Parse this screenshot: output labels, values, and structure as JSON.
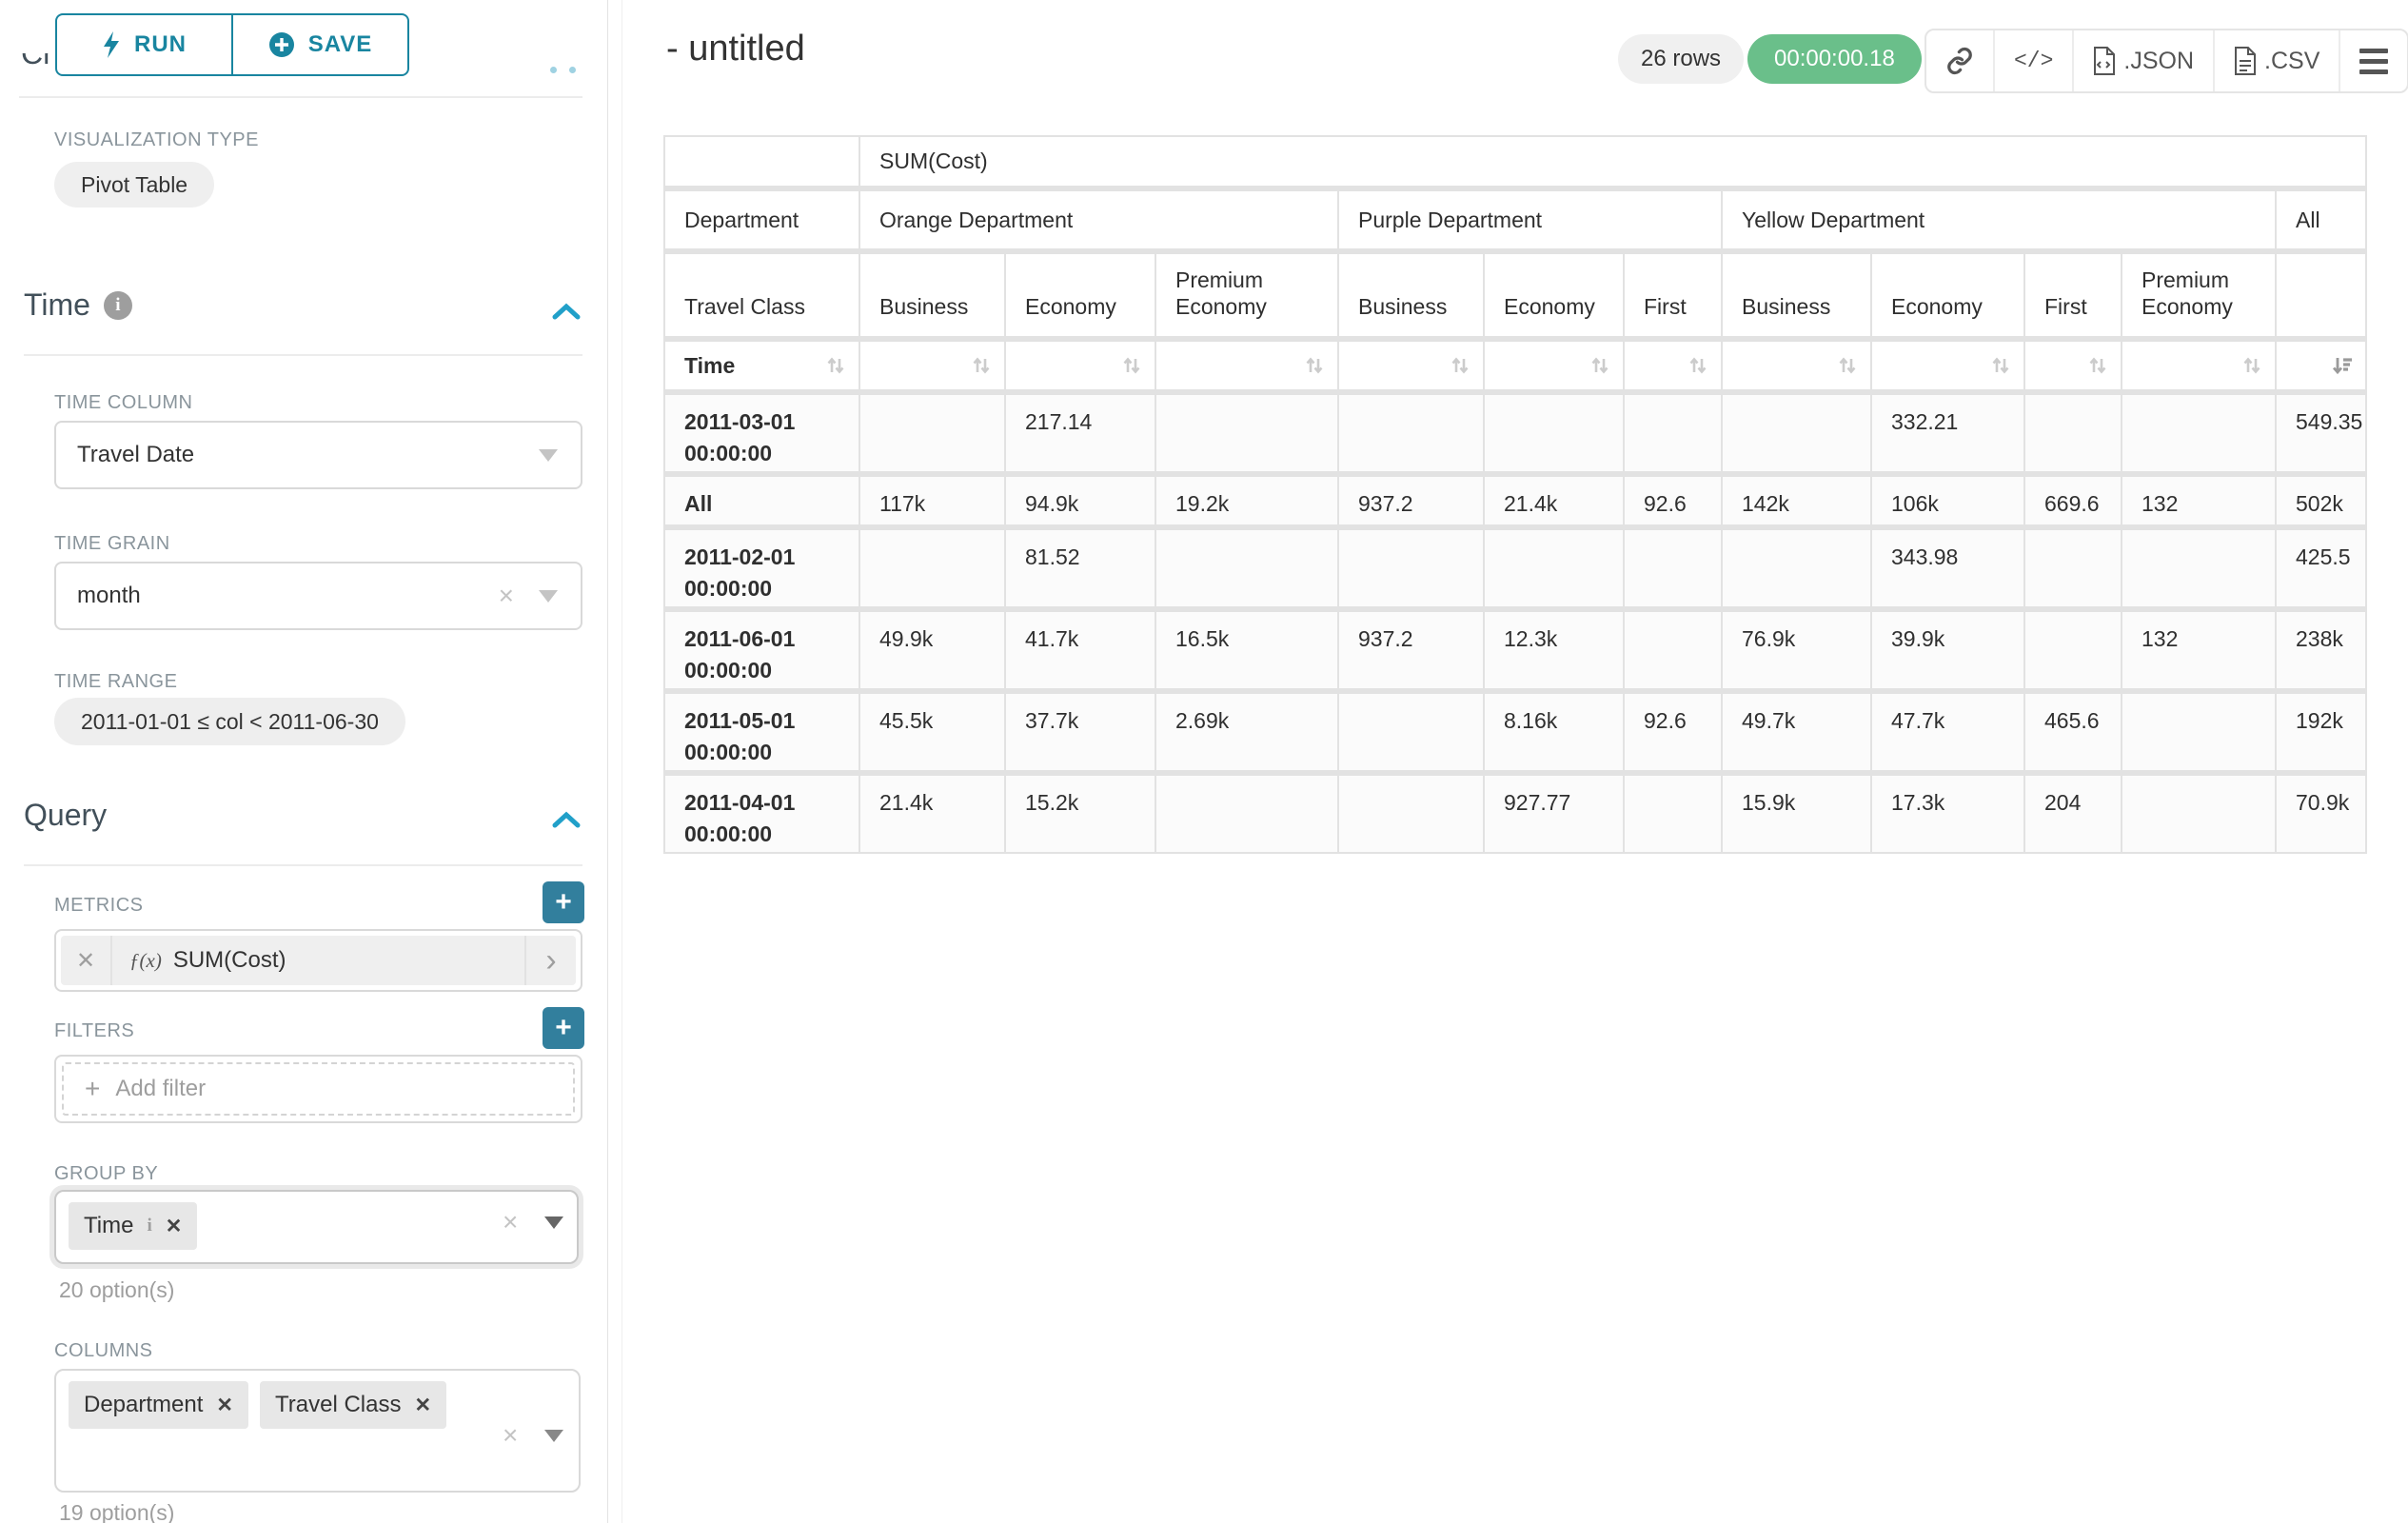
{
  "sidebar": {
    "run_label": "RUN",
    "save_label": "SAVE",
    "chart_type_heading": "Chart Type",
    "viz_type_label": "VISUALIZATION TYPE",
    "viz_type_value": "Pivot Table",
    "time": {
      "title": "Time",
      "time_column_label": "TIME COLUMN",
      "time_column_value": "Travel Date",
      "time_grain_label": "TIME GRAIN",
      "time_grain_value": "month",
      "time_range_label": "TIME RANGE",
      "time_range_value": "2011-01-01 ≤ col < 2011-06-30"
    },
    "query": {
      "title": "Query",
      "metrics_label": "METRICS",
      "metric_fx": "ƒ(x)",
      "metric_value": "SUM(Cost)",
      "filters_label": "FILTERS",
      "add_filter_label": "Add filter",
      "group_by_label": "GROUP BY",
      "group_by_chips": [
        {
          "label": "Time"
        }
      ],
      "group_by_options": "20 option(s)",
      "columns_label": "COLUMNS",
      "columns_chips": [
        {
          "label": "Department"
        },
        {
          "label": "Travel Class"
        }
      ],
      "columns_options": "19 option(s)"
    }
  },
  "header": {
    "title": "- untitled",
    "rows_badge": "26 rows",
    "timer_badge": "00:00:00.18",
    "json_label": ".JSON",
    "csv_label": ".CSV"
  },
  "chart_data": {
    "type": "table",
    "metric_header": "SUM(Cost)",
    "corner_row1": "Department",
    "corner_row2": "Travel Class",
    "corner_row3": "Time",
    "column_groups": [
      {
        "label": "Orange Department",
        "children": [
          "Business",
          "Economy",
          "Premium Economy"
        ]
      },
      {
        "label": "Purple Department",
        "children": [
          "Business",
          "Economy",
          "First"
        ]
      },
      {
        "label": "Yellow Department",
        "children": [
          "Business",
          "Economy",
          "First",
          "Premium Economy"
        ]
      },
      {
        "label": "All",
        "children": [
          ""
        ]
      }
    ],
    "sorted_column": "All",
    "sort_direction": "desc",
    "rows": [
      {
        "label": "2011-03-01 00:00:00",
        "values": [
          "",
          "217.14",
          "",
          "",
          "",
          "",
          "",
          "332.21",
          "",
          "",
          "549.35"
        ]
      },
      {
        "label": "All",
        "values": [
          "117k",
          "94.9k",
          "19.2k",
          "937.2",
          "21.4k",
          "92.6",
          "142k",
          "106k",
          "669.6",
          "132",
          "502k"
        ]
      },
      {
        "label": "2011-02-01 00:00:00",
        "values": [
          "",
          "81.52",
          "",
          "",
          "",
          "",
          "",
          "343.98",
          "",
          "",
          "425.5"
        ]
      },
      {
        "label": "2011-06-01 00:00:00",
        "values": [
          "49.9k",
          "41.7k",
          "16.5k",
          "937.2",
          "12.3k",
          "",
          "76.9k",
          "39.9k",
          "",
          "132",
          "238k"
        ]
      },
      {
        "label": "2011-05-01 00:00:00",
        "values": [
          "45.5k",
          "37.7k",
          "2.69k",
          "",
          "8.16k",
          "92.6",
          "49.7k",
          "47.7k",
          "465.6",
          "",
          "192k"
        ]
      },
      {
        "label": "2011-04-01 00:00:00",
        "values": [
          "21.4k",
          "15.2k",
          "",
          "",
          "927.77",
          "",
          "15.9k",
          "17.3k",
          "204",
          "",
          "70.9k"
        ]
      }
    ]
  }
}
